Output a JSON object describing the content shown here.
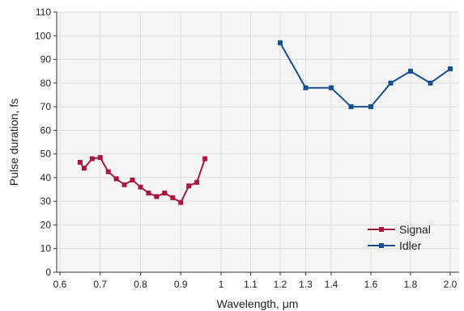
{
  "chart_data": {
    "type": "line",
    "xlabel": "Wavelength, μm",
    "ylabel": "Pulse duration, fs",
    "ylim": [
      0,
      110
    ],
    "y_ticks": [
      0,
      10,
      20,
      30,
      40,
      50,
      60,
      70,
      80,
      90,
      100,
      110
    ],
    "x_axis_note": "broken (non-linear) axis: 0.6–1.0 scaled differently from 1.0–2.0",
    "x_ticks": [
      "0.6",
      "0.7",
      "0.8",
      "0.9",
      "1",
      "1.1",
      "1.2",
      "1.3",
      "1.4",
      "1.6",
      "1.8",
      "2.0"
    ],
    "x_tick_values": [
      0.6,
      0.7,
      0.8,
      0.9,
      1.0,
      1.1,
      1.2,
      1.3,
      1.4,
      1.6,
      1.8,
      2.0
    ],
    "grid": true,
    "legend_position": "bottom-right",
    "series": [
      {
        "name": "Signal",
        "color": "#a6183f",
        "marker": "square",
        "x": [
          0.65,
          0.66,
          0.68,
          0.7,
          0.72,
          0.74,
          0.76,
          0.78,
          0.8,
          0.82,
          0.84,
          0.86,
          0.88,
          0.9,
          0.92,
          0.94,
          0.96
        ],
        "y": [
          46.5,
          44,
          48,
          48.5,
          42.5,
          39.5,
          37,
          39,
          36,
          33.5,
          32,
          33.5,
          31.5,
          29.5,
          36.5,
          38,
          48
        ]
      },
      {
        "name": "Idler",
        "color": "#154f8c",
        "marker": "square",
        "x": [
          1.2,
          1.3,
          1.4,
          1.5,
          1.6,
          1.7,
          1.8,
          1.9,
          2.0
        ],
        "y": [
          97,
          78,
          78,
          70,
          70,
          80,
          85,
          80,
          86
        ]
      }
    ]
  }
}
